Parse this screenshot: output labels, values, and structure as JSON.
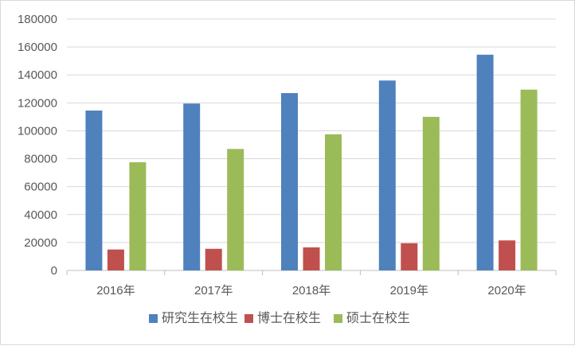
{
  "chart_data": {
    "type": "bar",
    "categories": [
      "2016年",
      "2017年",
      "2018年",
      "2019年",
      "2020年"
    ],
    "series": [
      {
        "name": "研究生在校生",
        "color": "#4f81bd",
        "values": [
          114500,
          119500,
          127000,
          136000,
          154500
        ]
      },
      {
        "name": "博士在校生",
        "color": "#c0504d",
        "values": [
          15000,
          15500,
          16500,
          19500,
          21500
        ]
      },
      {
        "name": "硕士在校生",
        "color": "#9bbb59",
        "values": [
          77500,
          87000,
          97500,
          110000,
          129500
        ]
      }
    ],
    "ylim": [
      0,
      180000
    ],
    "yticks": [
      "0",
      "20000",
      "40000",
      "60000",
      "80000",
      "100000",
      "120000",
      "140000",
      "160000",
      "180000"
    ],
    "grid": true,
    "legend_position": "bottom",
    "title": "",
    "xlabel": "",
    "ylabel": ""
  }
}
